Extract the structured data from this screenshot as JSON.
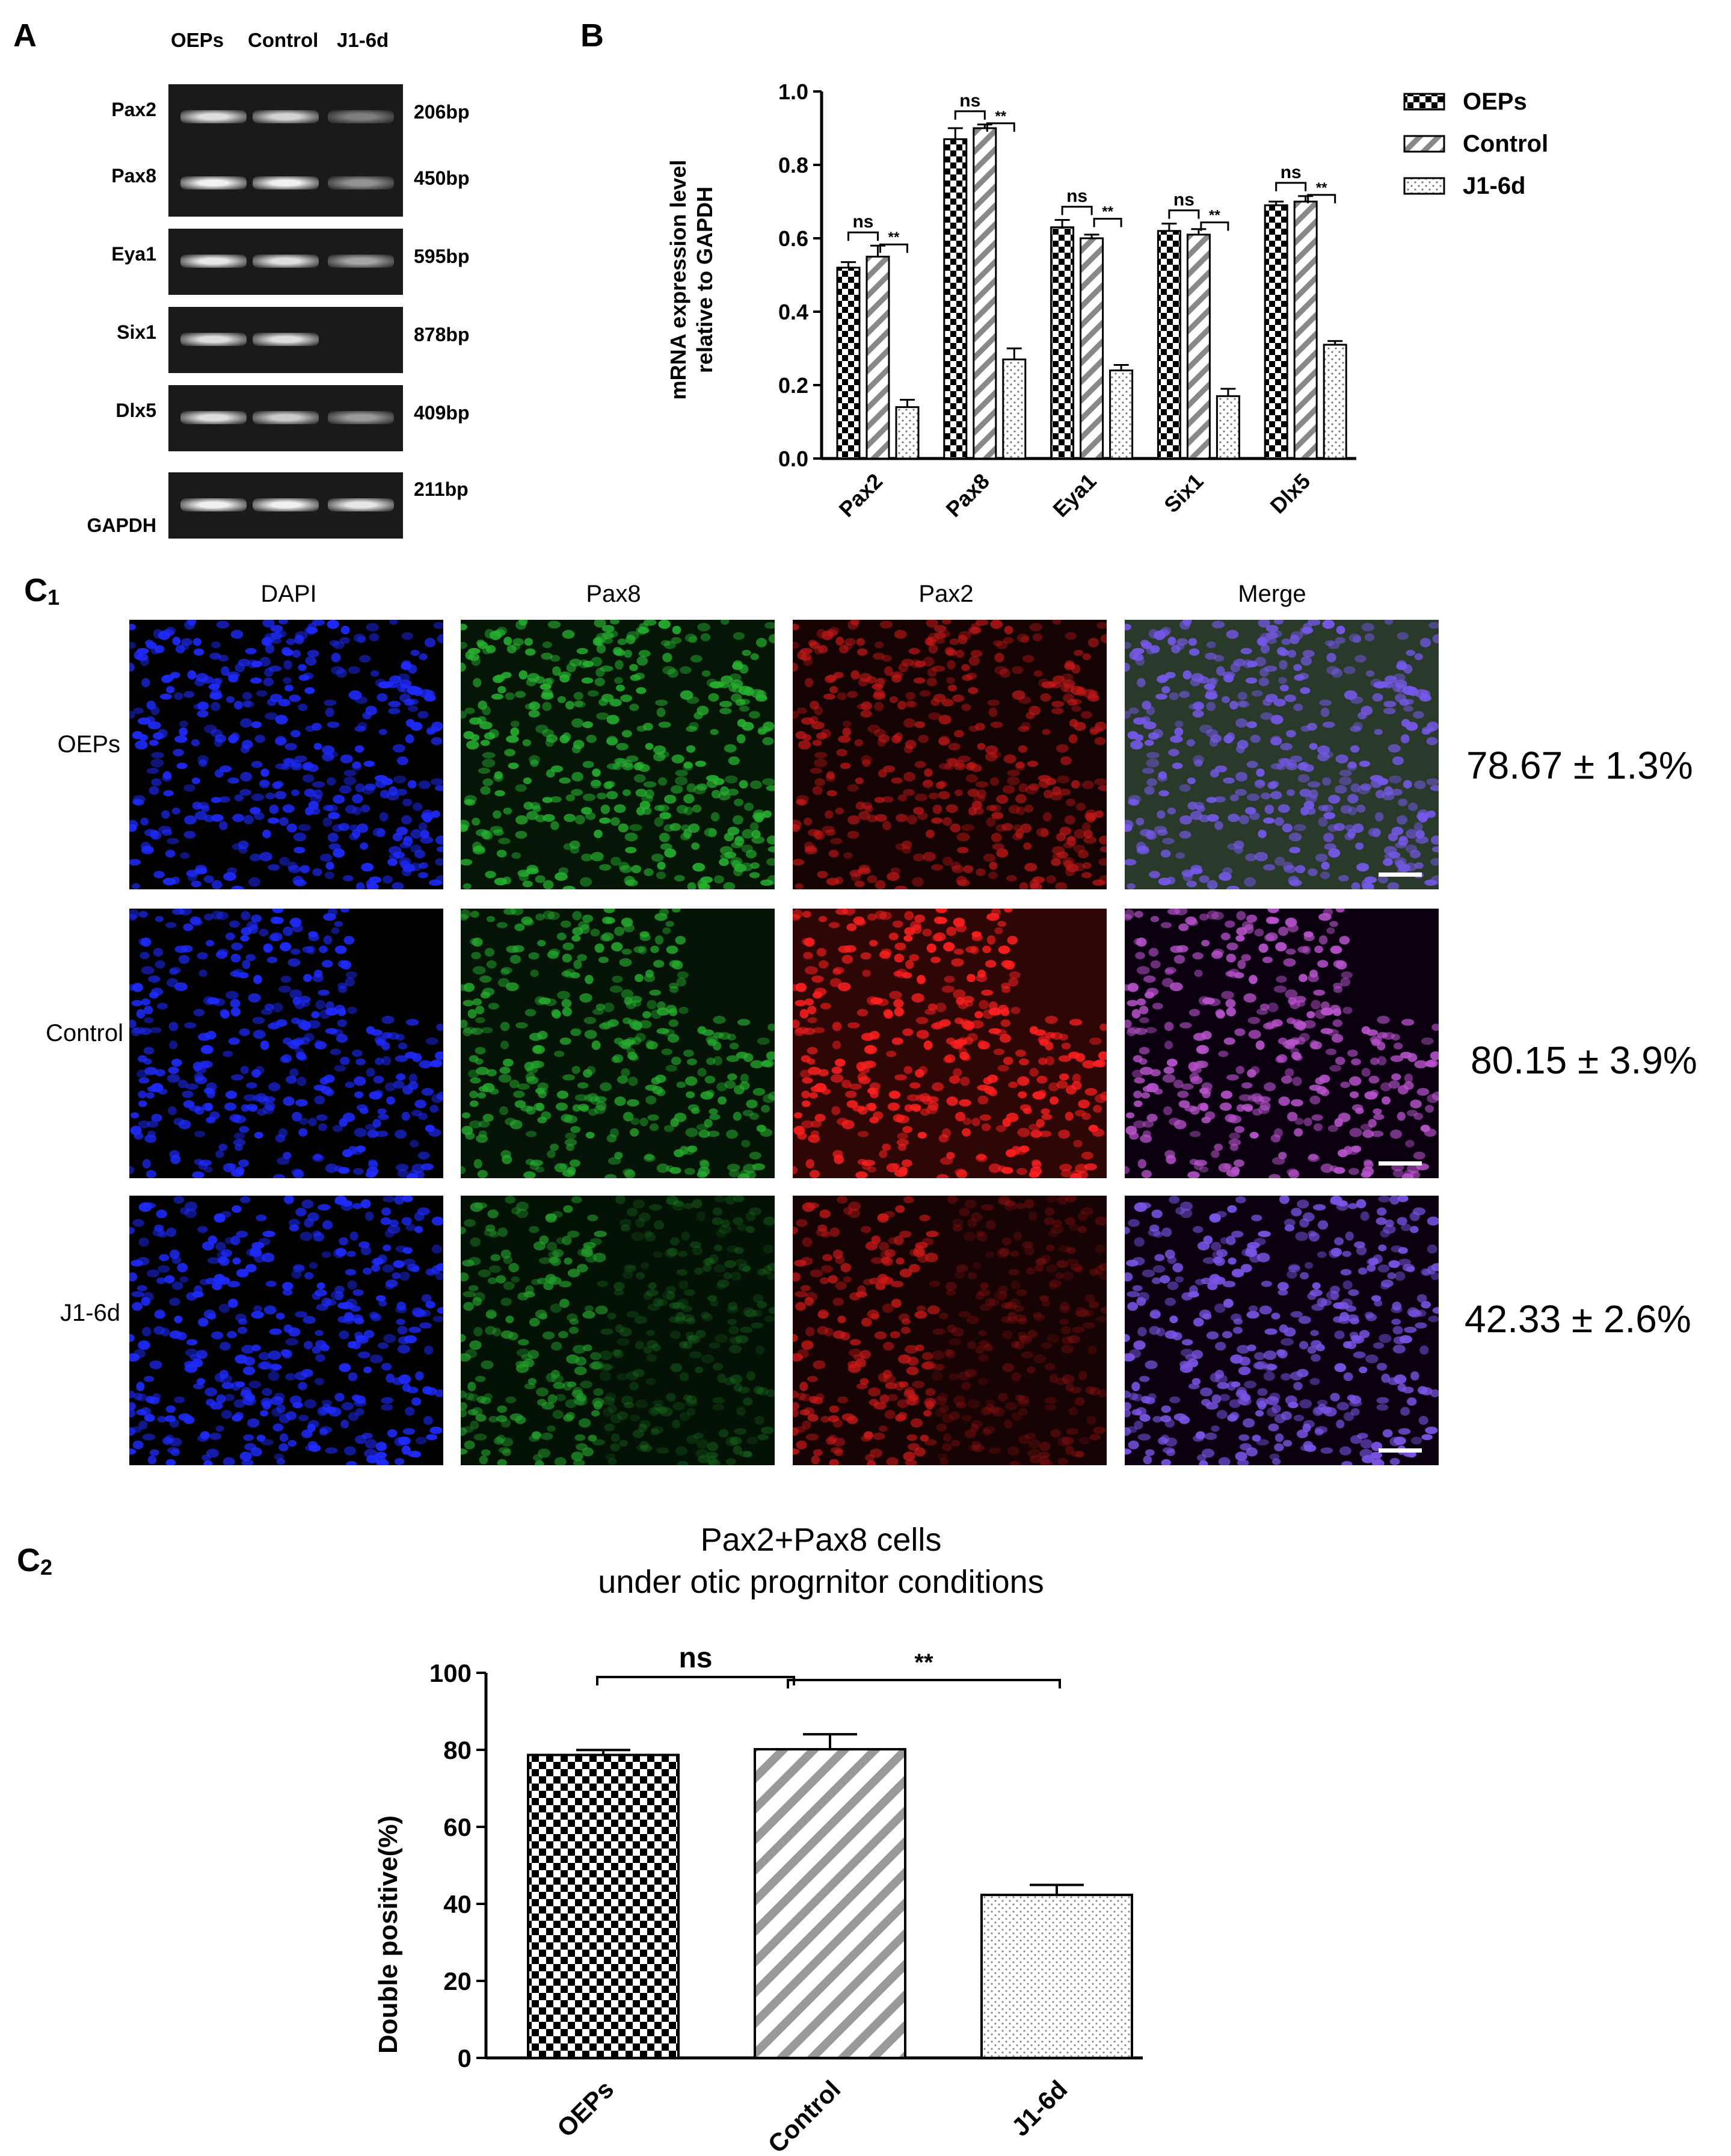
{
  "panel_labels": {
    "a": "A",
    "b": "B",
    "c1": "C",
    "c1_sub": "1",
    "c2": "C",
    "c2_sub": "2"
  },
  "gel": {
    "columns": [
      "OEPs",
      "Control",
      "J1-6d"
    ],
    "rows": [
      {
        "gene": "Pax2",
        "size": "206bp",
        "intensity": [
          0.85,
          0.8,
          0.35
        ]
      },
      {
        "gene": "Pax8",
        "size": "450bp",
        "intensity": [
          0.95,
          0.95,
          0.45
        ]
      },
      {
        "gene": "Eya1",
        "size": "595bp",
        "intensity": [
          0.9,
          0.85,
          0.55
        ]
      },
      {
        "gene": "Six1",
        "size": "878bp",
        "intensity": [
          0.85,
          0.85,
          0.0
        ]
      },
      {
        "gene": "Dlx5",
        "size": "409bp",
        "intensity": [
          0.85,
          0.75,
          0.5
        ]
      },
      {
        "gene": "GAPDH",
        "size": "211bp",
        "intensity": [
          0.95,
          0.95,
          0.9
        ]
      }
    ]
  },
  "chart_data": [
    {
      "type": "bar",
      "panel": "B",
      "title": "",
      "ylabel_line1": "mRNA expression level",
      "ylabel_line2": "relative to GAPDH",
      "xlabel": "",
      "ylim": [
        0,
        1.0
      ],
      "yticks": [
        "0.0",
        "0.2",
        "0.4",
        "0.6",
        "0.8",
        "1.0"
      ],
      "categories": [
        "Pax2",
        "Pax8",
        "Eya1",
        "Six1",
        "Dlx5"
      ],
      "series": [
        {
          "name": "OEPs",
          "pattern": "checker",
          "values": [
            0.52,
            0.87,
            0.63,
            0.62,
            0.69
          ],
          "errors": [
            0.015,
            0.03,
            0.02,
            0.02,
            0.01
          ]
        },
        {
          "name": "Control",
          "pattern": "hatch",
          "values": [
            0.55,
            0.9,
            0.6,
            0.61,
            0.7
          ],
          "errors": [
            0.03,
            0.01,
            0.01,
            0.015,
            0.015
          ]
        },
        {
          "name": "J1-6d",
          "pattern": "dots",
          "values": [
            0.14,
            0.27,
            0.24,
            0.17,
            0.31
          ],
          "errors": [
            0.02,
            0.03,
            0.015,
            0.02,
            0.01
          ]
        }
      ],
      "significance": [
        {
          "category": "Pax2",
          "ns": "ns",
          "sig": "**"
        },
        {
          "category": "Pax8",
          "ns": "ns",
          "sig": "**"
        },
        {
          "category": "Eya1",
          "ns": "ns",
          "sig": "**"
        },
        {
          "category": "Six1",
          "ns": "ns",
          "sig": "**"
        },
        {
          "category": "Dlx5",
          "ns": "ns",
          "sig": "**"
        }
      ],
      "legend_position": "top-right"
    },
    {
      "type": "bar",
      "panel": "C2",
      "title_line1": "Pax2+Pax8 cells",
      "title_line2": "under otic progrnitor conditions",
      "ylabel": "Double positive(%)",
      "xlabel": "",
      "ylim": [
        0,
        100
      ],
      "yticks": [
        "0",
        "20",
        "40",
        "60",
        "80",
        "100"
      ],
      "categories": [
        "OEPs",
        "Control",
        "J1-6d"
      ],
      "patterns": [
        "checker",
        "hatch",
        "dots"
      ],
      "values": [
        78.67,
        80.15,
        42.33
      ],
      "errors": [
        1.3,
        3.9,
        2.6
      ],
      "significance": [
        {
          "from": 0,
          "to": 1,
          "label": "ns"
        },
        {
          "from": 1,
          "to": 2,
          "label": "**"
        }
      ]
    }
  ],
  "if_panel": {
    "columns": [
      "DAPI",
      "Pax8",
      "Pax2",
      "Merge"
    ],
    "rows": [
      {
        "label": "OEPs",
        "percent": "78.67 ± 1.3%",
        "red": 0.45,
        "green": 0.6
      },
      {
        "label": "Control",
        "percent": "80.15 ± 3.9%",
        "red": 1.0,
        "green": 0.55
      },
      {
        "label": "J1-6d",
        "percent": "42.33 ± 2.6%",
        "red": 0.5,
        "green": 0.45
      }
    ],
    "colors": {
      "dapi": "#1f2bff",
      "pax8": "#2fcf3a",
      "pax2": "#ff2020"
    }
  }
}
